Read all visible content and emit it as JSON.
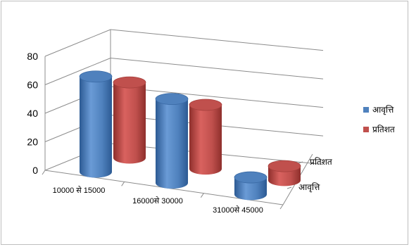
{
  "chart_data": {
    "type": "bar",
    "subtype": "3d-cylinder",
    "title": "",
    "xlabel": "",
    "ylabel": "",
    "categories": [
      "10000  से  15000",
      "16000से  30000",
      "31000से  45000"
    ],
    "series": [
      {
        "name": "आवृत्ति",
        "values": [
          67,
          59,
          12
        ],
        "color": "#4f81bd"
      },
      {
        "name": "प्रतिशत",
        "values": [
          53,
          45,
          10
        ],
        "color": "#c0504d"
      }
    ],
    "yticks": [
      0,
      20,
      40,
      60,
      80
    ],
    "ylim": [
      0,
      80
    ],
    "grid": true,
    "legend_position": "right"
  }
}
